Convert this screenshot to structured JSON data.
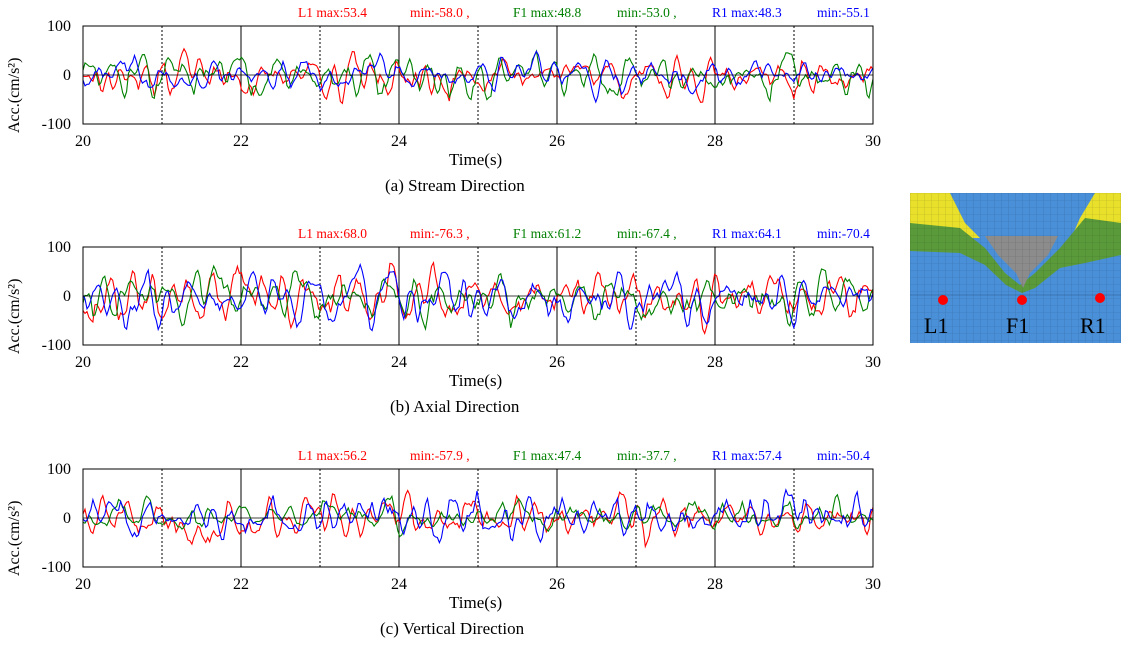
{
  "chart_data": [
    {
      "type": "line",
      "caption": "(a) Stream Direction",
      "xlabel": "Time(s)",
      "ylabel": "Acc.(cm/s²)",
      "xlim": [
        20,
        30
      ],
      "ylim": [
        -100,
        100
      ],
      "xticks": [
        20,
        22,
        24,
        26,
        28,
        30
      ],
      "yticks": [
        100,
        0,
        -100
      ],
      "grid_x_solid": [
        22,
        24,
        26,
        28
      ],
      "grid_x_dashed": [
        21,
        23,
        25,
        27,
        29
      ],
      "annotation_texts": [
        "L1  max:53.4",
        "min:-58.0 ,",
        "F1 max:48.8",
        "min:-53.0 ,",
        "R1  max:48.3",
        "min:-55.1"
      ],
      "series": [
        {
          "name": "L1",
          "color": "#ff0000",
          "max": 53.4,
          "min": -58.0
        },
        {
          "name": "F1",
          "color": "#008000",
          "max": 48.8,
          "min": -53.0
        },
        {
          "name": "R1",
          "color": "#0000ff",
          "max": 48.3,
          "min": -55.1
        }
      ]
    },
    {
      "type": "line",
      "caption": "(b) Axial Direction",
      "xlabel": "Time(s)",
      "ylabel": "Acc.(cm/s²)",
      "xlim": [
        20,
        30
      ],
      "ylim": [
        -100,
        100
      ],
      "xticks": [
        20,
        22,
        24,
        26,
        28,
        30
      ],
      "yticks": [
        100,
        0,
        -100
      ],
      "grid_x_solid": [
        22,
        24,
        26,
        28
      ],
      "grid_x_dashed": [
        21,
        23,
        25,
        27,
        29
      ],
      "annotation_texts": [
        "L1  max:68.0",
        "min:-76.3 ,",
        "F1 max:61.2",
        "min:-67.4 ,",
        "R1  max:64.1",
        "min:-70.4"
      ],
      "series": [
        {
          "name": "L1",
          "color": "#ff0000",
          "max": 68.0,
          "min": -76.3
        },
        {
          "name": "F1",
          "color": "#008000",
          "max": 61.2,
          "min": -67.4
        },
        {
          "name": "R1",
          "color": "#0000ff",
          "max": 64.1,
          "min": -70.4
        }
      ]
    },
    {
      "type": "line",
      "caption": "(c) Vertical Direction",
      "xlabel": "Time(s)",
      "ylabel": "Acc.(cm/s²)",
      "xlim": [
        20,
        30
      ],
      "ylim": [
        -100,
        100
      ],
      "xticks": [
        20,
        22,
        24,
        26,
        28,
        30
      ],
      "yticks": [
        100,
        0,
        -100
      ],
      "grid_x_solid": [
        22,
        24,
        26,
        28
      ],
      "grid_x_dashed": [
        21,
        23,
        25,
        27,
        29
      ],
      "annotation_texts": [
        "L1  max:56.2",
        "min:-57.9 ,",
        "F1 max:47.4",
        "min:-37.7 ,",
        "R1  max:57.4",
        "min:-50.4"
      ],
      "series": [
        {
          "name": "L1",
          "color": "#ff0000",
          "max": 56.2,
          "min": -57.9
        },
        {
          "name": "F1",
          "color": "#008000",
          "max": 47.4,
          "min": -37.7
        },
        {
          "name": "R1",
          "color": "#0000ff",
          "max": 57.4,
          "min": -50.4
        }
      ]
    }
  ],
  "dam_model": {
    "points": [
      "L1",
      "F1",
      "R1"
    ],
    "point_color": "#ff0000",
    "colors": {
      "foundation": "#4a90d9",
      "green_layer": "#5a9a3a",
      "yellow_layer": "#e8e02a",
      "dam_body": "#8c8c8c"
    }
  }
}
